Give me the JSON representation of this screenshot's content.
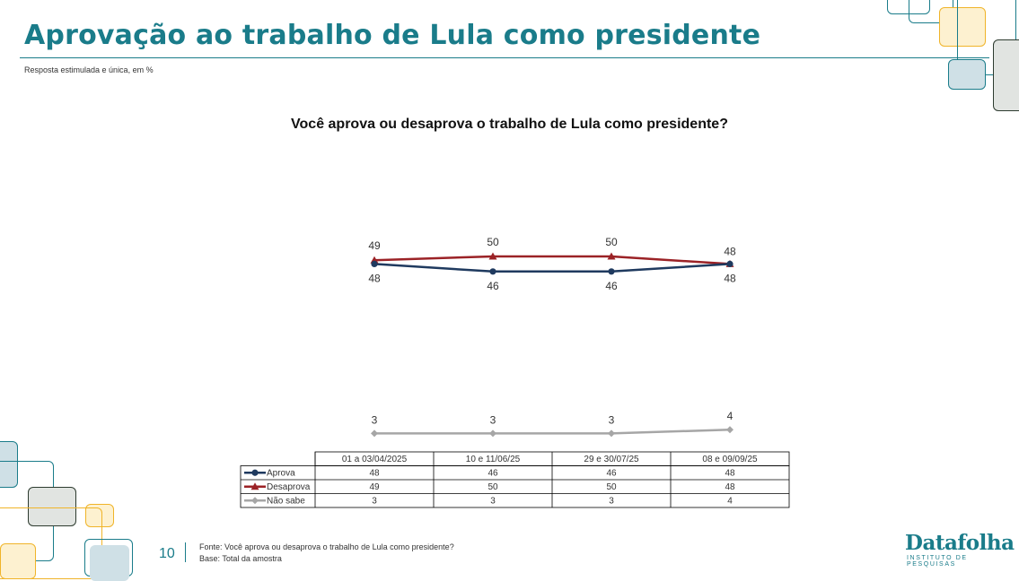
{
  "header": {
    "title": "Aprovação ao trabalho de Lula como presidente",
    "subtitle": "Resposta estimulada e única, em %"
  },
  "chart_data": {
    "type": "line",
    "title": "Você aprova ou desaprova o trabalho de Lula como presidente?",
    "categories": [
      "01 a 03/04/2025",
      "10 e 11/06/25",
      "29 e 30/07/25",
      "08 e 09/09/25"
    ],
    "series": [
      {
        "name": "Aprova",
        "values": [
          48,
          46,
          46,
          48
        ],
        "color": "#1f3a5f",
        "marker": "circle"
      },
      {
        "name": "Desaprova",
        "values": [
          49,
          50,
          50,
          48
        ],
        "color": "#9b2226",
        "marker": "triangle"
      },
      {
        "name": "Não sabe",
        "values": [
          3,
          3,
          3,
          4
        ],
        "color": "#a6a6a6",
        "marker": "diamond"
      }
    ],
    "data_table": true,
    "legend": "in-table"
  },
  "footer": {
    "page_number": "10",
    "source": "Fonte: Você aprova ou desaprova o trabalho de Lula como presidente?",
    "base": "Base: Total da amostra"
  },
  "logo": {
    "name": "Datafolha",
    "tagline": "INSTITUTO DE PESQUISAS"
  },
  "colors": {
    "accent": "#1a7c8a",
    "aprova": "#1f3a5f",
    "desaprova": "#9b2226",
    "nao_sabe": "#a6a6a6"
  }
}
